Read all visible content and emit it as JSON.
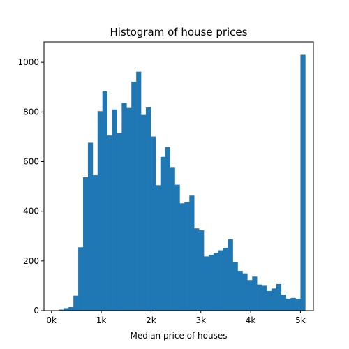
{
  "chart_data": {
    "type": "bar",
    "title": "Histogram of house prices",
    "xlabel": "Median price of houses",
    "ylabel": "",
    "xlim": [
      -150,
      5260
    ],
    "ylim": [
      0,
      1082
    ],
    "x_ticks": [
      {
        "value": 0,
        "label": "0k"
      },
      {
        "value": 1000,
        "label": "1k"
      },
      {
        "value": 2000,
        "label": "2k"
      },
      {
        "value": 3000,
        "label": "3k"
      },
      {
        "value": 4000,
        "label": "4k"
      },
      {
        "value": 5000,
        "label": "5k"
      }
    ],
    "y_ticks": [
      {
        "value": 0,
        "label": "0"
      },
      {
        "value": 200,
        "label": "200"
      },
      {
        "value": 400,
        "label": "400"
      },
      {
        "value": 600,
        "label": "600"
      },
      {
        "value": 800,
        "label": "800"
      },
      {
        "value": 1000,
        "label": "1000"
      }
    ],
    "bin_start": 150,
    "bin_width": 97,
    "values": [
      4,
      10,
      14,
      60,
      255,
      537,
      676,
      545,
      803,
      883,
      705,
      810,
      715,
      836,
      816,
      922,
      962,
      788,
      818,
      701,
      505,
      619,
      658,
      578,
      507,
      432,
      437,
      463,
      331,
      323,
      218,
      225,
      233,
      243,
      253,
      287,
      194,
      160,
      150,
      123,
      137,
      105,
      100,
      79,
      89,
      107,
      64,
      48,
      51,
      47,
      1030
    ],
    "bar_color": "#1f77b4",
    "grid": false
  }
}
